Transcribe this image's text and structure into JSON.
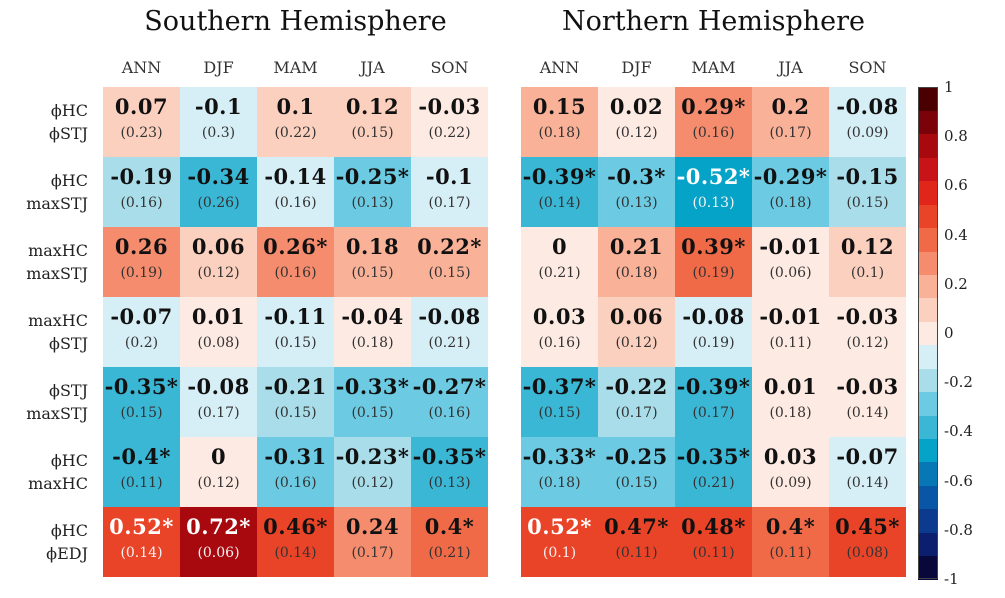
{
  "panels": [
    {
      "title": "Southern Hemisphere",
      "columns": [
        "ANN",
        "DJF",
        "MAM",
        "JJA",
        "SON"
      ],
      "rows": [
        {
          "values": [
            "0.07",
            "-0.1",
            "0.1",
            "0.12",
            "-0.03"
          ],
          "sub": [
            "(0.23)",
            "(0.3)",
            "(0.22)",
            "(0.15)",
            "(0.22)"
          ]
        },
        {
          "values": [
            "-0.19",
            "-0.34",
            "-0.14",
            "-0.25*",
            "-0.1"
          ],
          "sub": [
            "(0.16)",
            "(0.26)",
            "(0.16)",
            "(0.13)",
            "(0.17)"
          ]
        },
        {
          "values": [
            "0.26",
            "0.06",
            "0.26*",
            "0.18",
            "0.22*"
          ],
          "sub": [
            "(0.19)",
            "(0.12)",
            "(0.16)",
            "(0.15)",
            "(0.15)"
          ]
        },
        {
          "values": [
            "-0.07",
            "0.01",
            "-0.11",
            "-0.04",
            "-0.08"
          ],
          "sub": [
            "(0.2)",
            "(0.08)",
            "(0.15)",
            "(0.18)",
            "(0.21)"
          ]
        },
        {
          "values": [
            "-0.35*",
            "-0.08",
            "-0.21",
            "-0.33*",
            "-0.27*"
          ],
          "sub": [
            "(0.15)",
            "(0.17)",
            "(0.15)",
            "(0.15)",
            "(0.16)"
          ]
        },
        {
          "values": [
            "-0.4*",
            "0",
            "-0.31",
            "-0.23*",
            "-0.35*"
          ],
          "sub": [
            "(0.11)",
            "(0.12)",
            "(0.16)",
            "(0.12)",
            "(0.13)"
          ]
        },
        {
          "values": [
            "0.52*",
            "0.72*",
            "0.46*",
            "0.24",
            "0.4*"
          ],
          "sub": [
            "(0.14)",
            "(0.06)",
            "(0.14)",
            "(0.17)",
            "(0.21)"
          ]
        }
      ]
    },
    {
      "title": "Northern Hemisphere",
      "columns": [
        "ANN",
        "DJF",
        "MAM",
        "JJA",
        "SON"
      ],
      "rows": [
        {
          "values": [
            "0.15",
            "0.02",
            "0.29*",
            "0.2",
            "-0.08"
          ],
          "sub": [
            "(0.18)",
            "(0.12)",
            "(0.16)",
            "(0.17)",
            "(0.09)"
          ]
        },
        {
          "values": [
            "-0.39*",
            "-0.3*",
            "-0.52*",
            "-0.29*",
            "-0.15"
          ],
          "sub": [
            "(0.14)",
            "(0.13)",
            "(0.13)",
            "(0.18)",
            "(0.15)"
          ]
        },
        {
          "values": [
            "0",
            "0.21",
            "0.39*",
            "-0.01",
            "0.12"
          ],
          "sub": [
            "(0.21)",
            "(0.18)",
            "(0.19)",
            "(0.06)",
            "(0.1)"
          ]
        },
        {
          "values": [
            "0.03",
            "0.06",
            "-0.08",
            "-0.01",
            "-0.03"
          ],
          "sub": [
            "(0.16)",
            "(0.12)",
            "(0.19)",
            "(0.11)",
            "(0.12)"
          ]
        },
        {
          "values": [
            "-0.37*",
            "-0.22",
            "-0.39*",
            "0.01",
            "-0.03"
          ],
          "sub": [
            "(0.15)",
            "(0.17)",
            "(0.17)",
            "(0.18)",
            "(0.14)"
          ]
        },
        {
          "values": [
            "-0.33*",
            "-0.25",
            "-0.35*",
            "0.03",
            "-0.07"
          ],
          "sub": [
            "(0.18)",
            "(0.15)",
            "(0.21)",
            "(0.09)",
            "(0.14)"
          ]
        },
        {
          "values": [
            "0.52*",
            "0.47*",
            "0.48*",
            "0.4*",
            "0.45*"
          ],
          "sub": [
            "(0.1)",
            "(0.11)",
            "(0.11)",
            "(0.11)",
            "(0.08)"
          ]
        }
      ]
    }
  ],
  "row_labels": [
    [
      "ϕHC",
      "ϕSTJ"
    ],
    [
      "ϕHC",
      "maxSTJ"
    ],
    [
      "maxHC",
      "maxSTJ"
    ],
    [
      "maxHC",
      "ϕSTJ"
    ],
    [
      "ϕSTJ",
      "maxSTJ"
    ],
    [
      "ϕHC",
      "maxHC"
    ],
    [
      "ϕHC",
      "ϕEDJ"
    ]
  ],
  "colorbar": {
    "ticks": [
      "1",
      "0.8",
      "0.6",
      "0.4",
      "0.2",
      "0",
      "-0.2",
      "-0.4",
      "-0.6",
      "-0.8",
      "-1"
    ],
    "colors": [
      "#08083a",
      "#0b1f6e",
      "#0b3a8e",
      "#0a56a6",
      "#0877b5",
      "#06a3c8",
      "#3bb7d6",
      "#6ccbe3",
      "#a9ddea",
      "#d6eef5",
      "#fdeae3",
      "#fcd0bf",
      "#f9b198",
      "#f58c6d",
      "#f06a48",
      "#ea4428",
      "#e0251a",
      "#c81418",
      "#a8090f",
      "#7a0208",
      "#4a0000"
    ]
  },
  "chart_data": {
    "type": "heatmap",
    "title": [
      "Southern Hemisphere",
      "Northern Hemisphere"
    ],
    "x_categories": [
      "ANN",
      "DJF",
      "MAM",
      "JJA",
      "SON"
    ],
    "y_categories": [
      "ϕHC / ϕSTJ",
      "ϕHC / maxSTJ",
      "maxHC / maxSTJ",
      "maxHC / ϕSTJ",
      "ϕSTJ / maxSTJ",
      "ϕHC / maxHC",
      "ϕHC / ϕEDJ"
    ],
    "series": [
      {
        "name": "Southern Hemisphere",
        "values": [
          [
            0.07,
            -0.1,
            0.1,
            0.12,
            -0.03
          ],
          [
            -0.19,
            -0.34,
            -0.14,
            -0.25,
            -0.1
          ],
          [
            0.26,
            0.06,
            0.26,
            0.18,
            0.22
          ],
          [
            -0.07,
            0.01,
            -0.11,
            -0.04,
            -0.08
          ],
          [
            -0.35,
            -0.08,
            -0.21,
            -0.33,
            -0.27
          ],
          [
            -0.4,
            0,
            -0.31,
            -0.23,
            -0.35
          ],
          [
            0.52,
            0.72,
            0.46,
            0.24,
            0.4
          ]
        ]
      },
      {
        "name": "Northern Hemisphere",
        "values": [
          [
            0.15,
            0.02,
            0.29,
            0.2,
            -0.08
          ],
          [
            -0.39,
            -0.3,
            -0.52,
            -0.29,
            -0.15
          ],
          [
            0,
            0.21,
            0.39,
            -0.01,
            0.12
          ],
          [
            0.03,
            0.06,
            -0.08,
            -0.01,
            -0.03
          ],
          [
            -0.37,
            -0.22,
            -0.39,
            0.01,
            -0.03
          ],
          [
            -0.33,
            -0.25,
            -0.35,
            0.03,
            -0.07
          ],
          [
            0.52,
            0.47,
            0.48,
            0.4,
            0.45
          ]
        ]
      }
    ],
    "colorbar_range": [
      -1,
      1
    ],
    "colormap": "diverging blue-white-red"
  }
}
